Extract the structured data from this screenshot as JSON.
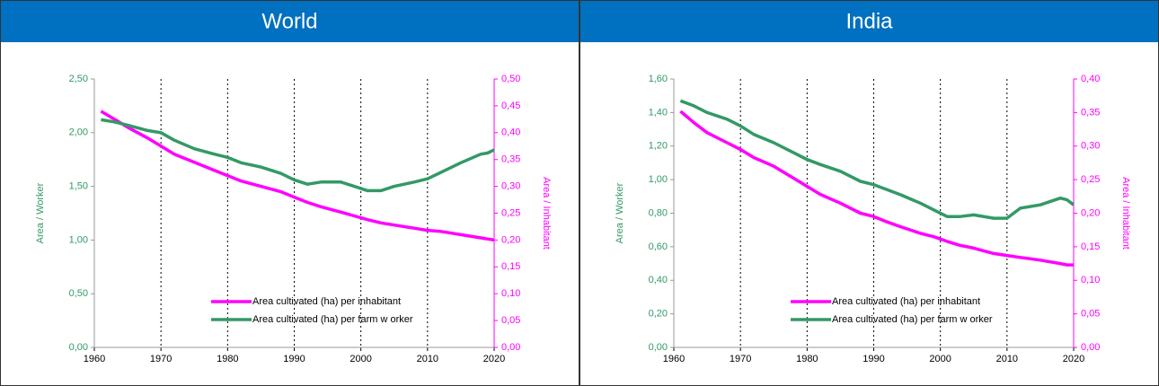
{
  "chart_data": [
    {
      "type": "line",
      "title": "World",
      "ylabel": "Area / Worker",
      "y2label": "Area / Inhabitant",
      "x": [
        1961,
        1963,
        1965,
        1968,
        1970,
        1972,
        1975,
        1978,
        1980,
        1982,
        1985,
        1988,
        1990,
        1992,
        1994,
        1997,
        1999,
        2001,
        2003,
        2005,
        2008,
        2010,
        2012,
        2015,
        2018,
        2019,
        2020
      ],
      "series": [
        {
          "name": "Area cultivated (ha) per inhabitant",
          "color": "#ff00ff",
          "axis": "y2",
          "values": [
            0.44,
            0.425,
            0.41,
            0.39,
            0.375,
            0.36,
            0.345,
            0.33,
            0.32,
            0.31,
            0.3,
            0.29,
            0.28,
            0.27,
            0.262,
            0.252,
            0.245,
            0.238,
            0.232,
            0.228,
            0.222,
            0.218,
            0.216,
            0.21,
            0.204,
            0.202,
            0.2
          ]
        },
        {
          "name": "Area cultivated (ha) per farm w orker",
          "color": "#339966",
          "values": [
            2.12,
            2.1,
            2.07,
            2.02,
            2.0,
            1.93,
            1.85,
            1.8,
            1.77,
            1.72,
            1.68,
            1.62,
            1.56,
            1.52,
            1.54,
            1.54,
            1.5,
            1.46,
            1.46,
            1.5,
            1.54,
            1.57,
            1.63,
            1.72,
            1.8,
            1.81,
            1.84
          ]
        }
      ],
      "xlim": [
        1960,
        2020
      ],
      "xticks": [
        1960,
        1970,
        1980,
        1990,
        2000,
        2010,
        2020
      ],
      "ylim": [
        0,
        2.5
      ],
      "yticks": [
        {
          "value": 0,
          "label": "0,00"
        },
        {
          "value": 0.5,
          "label": "0,50"
        },
        {
          "value": 1,
          "label": "1,00"
        },
        {
          "value": 1.5,
          "label": "1,50"
        },
        {
          "value": 2,
          "label": "2,00"
        },
        {
          "value": 2.5,
          "label": "2,50"
        }
      ],
      "y2lim": [
        0,
        0.5
      ],
      "y2ticks": [
        {
          "value": 0,
          "label": "0,00"
        },
        {
          "value": 0.05,
          "label": "0,05"
        },
        {
          "value": 0.1,
          "label": "0,10"
        },
        {
          "value": 0.15,
          "label": "0,15"
        },
        {
          "value": 0.2,
          "label": "0,20"
        },
        {
          "value": 0.25,
          "label": "0,25"
        },
        {
          "value": 0.3,
          "label": "0,30"
        },
        {
          "value": 0.35,
          "label": "0,35"
        },
        {
          "value": 0.4,
          "label": "0,40"
        },
        {
          "value": 0.45,
          "label": "0,45"
        },
        {
          "value": 0.5,
          "label": "0,50"
        }
      ],
      "grid": "x",
      "legend": "lower right"
    },
    {
      "type": "line",
      "title": "India",
      "ylabel": "Area / Worker",
      "y2label": "Area / Inhabitant",
      "x": [
        1961,
        1963,
        1965,
        1968,
        1970,
        1972,
        1975,
        1978,
        1980,
        1982,
        1985,
        1988,
        1990,
        1992,
        1994,
        1997,
        1999,
        2001,
        2003,
        2005,
        2008,
        2010,
        2012,
        2015,
        2018,
        2019,
        2020
      ],
      "series": [
        {
          "name": "Area cultivated (ha) per inhabitant",
          "color": "#ff00ff",
          "axis": "y2",
          "values": [
            0.352,
            0.335,
            0.32,
            0.305,
            0.295,
            0.283,
            0.27,
            0.252,
            0.24,
            0.228,
            0.215,
            0.2,
            0.195,
            0.187,
            0.18,
            0.17,
            0.165,
            0.158,
            0.152,
            0.148,
            0.14,
            0.137,
            0.134,
            0.13,
            0.125,
            0.123,
            0.123
          ]
        },
        {
          "name": "Area cultivated (ha) per farm w orker",
          "color": "#339966",
          "values": [
            1.47,
            1.44,
            1.4,
            1.36,
            1.32,
            1.27,
            1.22,
            1.16,
            1.12,
            1.09,
            1.05,
            0.99,
            0.97,
            0.94,
            0.91,
            0.86,
            0.82,
            0.78,
            0.78,
            0.79,
            0.77,
            0.77,
            0.83,
            0.85,
            0.89,
            0.88,
            0.85
          ]
        }
      ],
      "xlim": [
        1960,
        2020
      ],
      "xticks": [
        1960,
        1970,
        1980,
        1990,
        2000,
        2010,
        2020
      ],
      "ylim": [
        0,
        1.6
      ],
      "yticks": [
        {
          "value": 0,
          "label": "0,00"
        },
        {
          "value": 0.2,
          "label": "0,20"
        },
        {
          "value": 0.4,
          "label": "0,40"
        },
        {
          "value": 0.6,
          "label": "0,60"
        },
        {
          "value": 0.8,
          "label": "0,80"
        },
        {
          "value": 1,
          "label": "1,00"
        },
        {
          "value": 1.2,
          "label": "1,20"
        },
        {
          "value": 1.4,
          "label": "1,40"
        },
        {
          "value": 1.6,
          "label": "1,60"
        }
      ],
      "y2lim": [
        0,
        0.4
      ],
      "y2ticks": [
        {
          "value": 0,
          "label": "0,00"
        },
        {
          "value": 0.05,
          "label": "0,05"
        },
        {
          "value": 0.1,
          "label": "0,10"
        },
        {
          "value": 0.15,
          "label": "0,15"
        },
        {
          "value": 0.2,
          "label": "0,20"
        },
        {
          "value": 0.25,
          "label": "0,25"
        },
        {
          "value": 0.3,
          "label": "0,30"
        },
        {
          "value": 0.35,
          "label": "0,35"
        },
        {
          "value": 0.4,
          "label": "0,40"
        }
      ],
      "grid": "x",
      "legend": "lower right"
    }
  ]
}
